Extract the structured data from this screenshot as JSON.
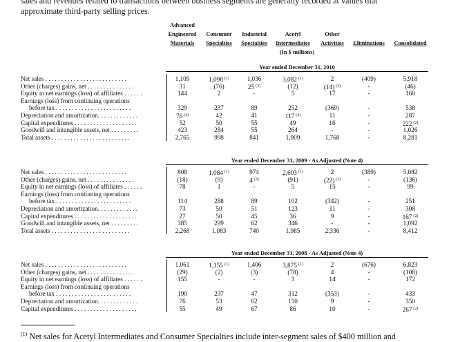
{
  "intro": {
    "line1": "sales and revenues related to transactions between business segments are generally recorded at values that",
    "line2": "approximate third-party selling prices."
  },
  "columns": [
    {
      "lines": [
        "Advanced",
        "Engineered",
        "Materials"
      ]
    },
    {
      "lines": [
        "Consumer",
        "Specialties"
      ]
    },
    {
      "lines": [
        "Industrial",
        "Specialties"
      ]
    },
    {
      "lines": [
        "Acetyl",
        "Intermediates"
      ]
    },
    {
      "lines": [
        "Other",
        "Activities"
      ]
    },
    {
      "lines": [
        "Eliminations"
      ]
    },
    {
      "lines": [
        "Consolidated"
      ]
    }
  ],
  "units": "(In $ millions)",
  "sections": [
    {
      "title": "Year ended December 31, 2010",
      "rows": [
        {
          "label": "Net sales . . . . . . . . . . . . . . . . . . . . . . . . . .",
          "values": [
            "1,109",
            "1,098",
            "1,036",
            "3,082",
            "2",
            "(409)",
            "5,918"
          ],
          "notes": [
            "",
            "(1)",
            "",
            "(1)",
            "",
            "",
            ""
          ]
        },
        {
          "label": "Other (charges) gains, net  . . . . . . . . . . . . . . .",
          "values": [
            "31",
            "(76)",
            "25",
            "(12)",
            "(14)",
            "-",
            "(46)"
          ],
          "notes": [
            "",
            "",
            "(3)",
            "",
            "(3)",
            "",
            ""
          ]
        },
        {
          "label": "Equity in net earnings (loss) of affiliates . . . . . .",
          "values": [
            "144",
            "2",
            "-",
            "5",
            "17",
            "-",
            "168"
          ],
          "notes": [
            "",
            "",
            "",
            "",
            "",
            "",
            ""
          ]
        },
        {
          "label": "Earnings (loss) from continuing operations",
          "values": [
            "",
            "",
            "",
            "",
            "",
            "",
            ""
          ],
          "notes": [
            "",
            "",
            "",
            "",
            "",
            "",
            ""
          ]
        },
        {
          "label": "before tax . . . . . . . . . . . . . . . . . . . . . . . .",
          "indent": true,
          "values": [
            "329",
            "237",
            "89",
            "252",
            "(369)",
            "-",
            "538"
          ],
          "notes": [
            "",
            "",
            "",
            "",
            "",
            "",
            ""
          ]
        },
        {
          "label": "Depreciation and amortization. . . . . . . . . . . . .",
          "values": [
            "76",
            "42",
            "41",
            "117",
            "11",
            "-",
            "287"
          ],
          "notes": [
            "(4)",
            "",
            "",
            "(4)",
            "",
            "",
            ""
          ]
        },
        {
          "label": "Capital expenditures . . . . . . . . . . . . . . . . . . . .",
          "values": [
            "52",
            "50",
            "55",
            "49",
            "16",
            "-",
            "222"
          ],
          "notes": [
            "",
            "",
            "",
            "",
            "",
            "",
            "(2)"
          ]
        },
        {
          "label": "Goodwill and intangible assets, net  . . . . . . . . .",
          "values": [
            "423",
            "284",
            "55",
            "264",
            "-",
            "-",
            "1,026"
          ],
          "notes": [
            "",
            "",
            "",
            "",
            "",
            "",
            ""
          ]
        },
        {
          "label": "Total assets . . . . . . . . . . . . . . . . . . . . . . . . .",
          "values": [
            "2,765",
            "998",
            "841",
            "1,909",
            "1,768",
            "-",
            "8,281"
          ],
          "notes": [
            "",
            "",
            "",
            "",
            "",
            "",
            ""
          ]
        }
      ]
    },
    {
      "title": "Year ended December 31, 2009 - As Adjusted (Note 4)",
      "rows": [
        {
          "label": "Net sales . . . . . . . . . . . . . . . . . . . . . . . . . .",
          "values": [
            "808",
            "1,084",
            "974",
            "2,603",
            "2",
            "(389)",
            "5,082"
          ],
          "notes": [
            "",
            "(1)",
            "",
            "(1)",
            "",
            "",
            ""
          ]
        },
        {
          "label": "Other (charges) gains, net  . . . . . . . . . . . . . . .",
          "values": [
            "(18)",
            "(9)",
            "4",
            "(91)",
            "(22)",
            "-",
            "(136)"
          ],
          "notes": [
            "",
            "",
            "(3)",
            "",
            "(3)",
            "",
            ""
          ]
        },
        {
          "label": "Equity in net earnings (loss) of affiliates . . . . . .",
          "values": [
            "78",
            "1",
            "-",
            "5",
            "15",
            "-",
            "99"
          ],
          "notes": [
            "",
            "",
            "",
            "",
            "",
            "",
            ""
          ]
        },
        {
          "label": "Earnings (loss) from continuing operations",
          "values": [
            "",
            "",
            "",
            "",
            "",
            "",
            ""
          ],
          "notes": [
            "",
            "",
            "",
            "",
            "",
            "",
            ""
          ]
        },
        {
          "label": "before tax . . . . . . . . . . . . . . . . . . . . . . . .",
          "indent": true,
          "values": [
            "114",
            "288",
            "89",
            "102",
            "(342)",
            "-",
            "251"
          ],
          "notes": [
            "",
            "",
            "",
            "",
            "",
            "",
            ""
          ]
        },
        {
          "label": "Depreciation and amortization. . . . . . . . . . . . .",
          "values": [
            "73",
            "50",
            "51",
            "123",
            "11",
            "-",
            "308"
          ],
          "notes": [
            "",
            "",
            "",
            "",
            "",
            "",
            ""
          ]
        },
        {
          "label": "Capital expenditures . . . . . . . . . . . . . . . . . . . .",
          "values": [
            "27",
            "50",
            "45",
            "36",
            "9",
            "-",
            "167"
          ],
          "notes": [
            "",
            "",
            "",
            "",
            "",
            "",
            "(2)"
          ]
        },
        {
          "label": "Goodwill and intangible assets, net  . . . . . . . . .",
          "values": [
            "385",
            "299",
            "62",
            "346",
            "-",
            "-",
            "1,092"
          ],
          "notes": [
            "",
            "",
            "",
            "",
            "",
            "",
            ""
          ]
        },
        {
          "label": "Total assets . . . . . . . . . . . . . . . . . . . . . . . . .",
          "values": [
            "2,268",
            "1,083",
            "740",
            "1,985",
            "2,336",
            "-",
            "8,412"
          ],
          "notes": [
            "",
            "",
            "",
            "",
            "",
            "",
            ""
          ]
        }
      ]
    },
    {
      "title": "Year ended December 31, 2008 - As Adjusted (Note 4)",
      "rows": [
        {
          "label": "Net sales . . . . . . . . . . . . . . . . . . . . . . . . . .",
          "values": [
            "1,061",
            "1,155",
            "1,406",
            "3,875",
            "2",
            "(676)",
            "6,823"
          ],
          "notes": [
            "",
            "(1)",
            "",
            "(1)",
            "",
            "",
            ""
          ]
        },
        {
          "label": "Other (charges) gains, net  . . . . . . . . . . . . . . .",
          "values": [
            "(29)",
            "(2)",
            "(3)",
            "(78)",
            "4",
            "-",
            "(108)"
          ],
          "notes": [
            "",
            "",
            "",
            "",
            "",
            "",
            ""
          ]
        },
        {
          "label": "Equity in net earnings (loss) of affiliates . . . . . .",
          "values": [
            "155",
            "-",
            "-",
            "3",
            "14",
            "-",
            "172"
          ],
          "notes": [
            "",
            "",
            "",
            "",
            "",
            "",
            ""
          ]
        },
        {
          "label": "Earnings (loss) from continuing operations",
          "values": [
            "",
            "",
            "",
            "",
            "",
            "",
            ""
          ],
          "notes": [
            "",
            "",
            "",
            "",
            "",
            "",
            ""
          ]
        },
        {
          "label": "before tax . . . . . . . . . . . . . . . . . . . . . . . .",
          "indent": true,
          "values": [
            "190",
            "237",
            "47",
            "312",
            "(353)",
            "-",
            "433"
          ],
          "notes": [
            "",
            "",
            "",
            "",
            "",
            "",
            ""
          ]
        },
        {
          "label": "Depreciation and amortization. . . . . . . . . . . . .",
          "values": [
            "76",
            "53",
            "62",
            "150",
            "9",
            "-",
            "350"
          ],
          "notes": [
            "",
            "",
            "",
            "",
            "",
            "",
            ""
          ]
        },
        {
          "label": "Capital expenditures . . . . . . . . . . . . . . . . . . . .",
          "values": [
            "55",
            "49",
            "67",
            "86",
            "10",
            "-",
            "267"
          ],
          "notes": [
            "",
            "",
            "",
            "",
            "",
            "",
            "(2)"
          ]
        }
      ]
    }
  ],
  "footnote": {
    "marker": "(1)",
    "text": " Net sales for Acetyl Intermediates and Consumer Specialties include inter-segment sales of $400 million and"
  }
}
